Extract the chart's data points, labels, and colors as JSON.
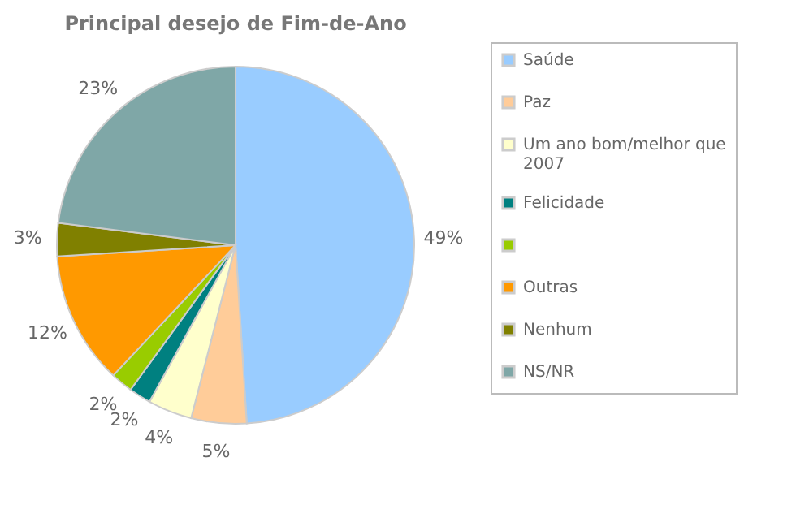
{
  "chart_data": {
    "type": "pie",
    "title": "Principal desejo de Fim-de-Ano",
    "categories": [
      "Saúde",
      "Paz",
      "Um ano bom/melhor que 2007",
      "Felicidade",
      null,
      "Outras",
      "Nenhum",
      "NS/NR"
    ],
    "values": [
      49,
      5,
      4,
      2,
      2,
      12,
      3,
      23
    ],
    "colors": [
      "#99ccff",
      "#ffcc99",
      "#ffffcc",
      "#008080",
      "#99cc00",
      "#ff9900",
      "#808000",
      "#7fa7a7"
    ],
    "value_labels": [
      "49%",
      "5%",
      "4%",
      "2%",
      "2%",
      "12%",
      "3%",
      "23%"
    ],
    "legend": "right"
  }
}
